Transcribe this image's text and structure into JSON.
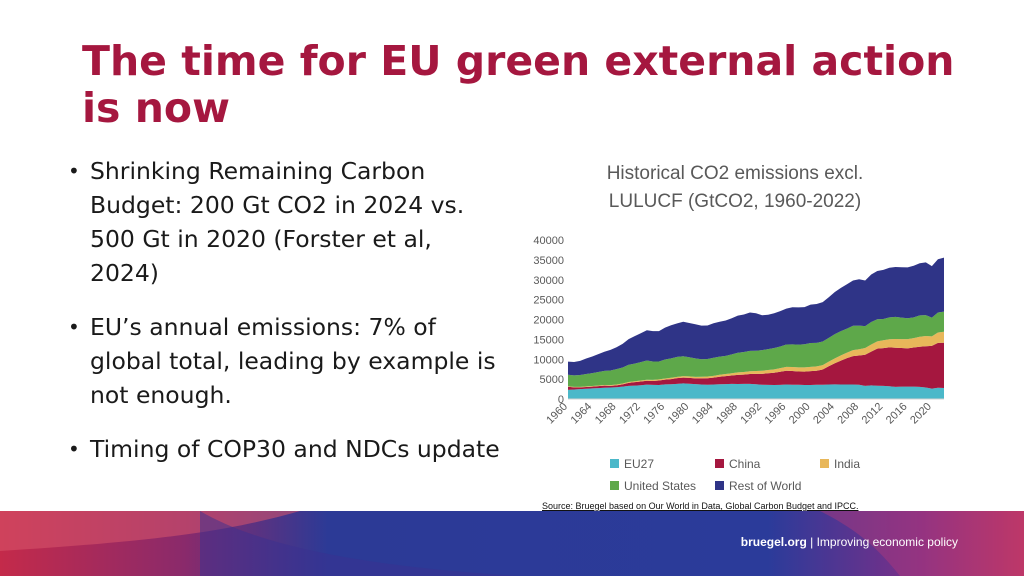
{
  "slide": {
    "title": "The time for EU green external action is now",
    "bullets": [
      "Shrinking Remaining Carbon Budget: 200 Gt CO2 in 2024 vs. 500 Gt in 2020 (Forster et al, 2024)",
      "EU’s annual emissions: 7% of global total, leading by example is not enough.",
      "Timing of COP30 and NDCs update"
    ],
    "source": "Source: Bruegel based on Our World in Data, Global Carbon Budget and IPCC.",
    "footer_site": "bruegel.org",
    "footer_separator": " | ",
    "footer_tagline": "Improving economic policy"
  },
  "colors": {
    "title": "#a5173f",
    "EU27": "#4bb8c9",
    "China": "#a5173f",
    "India": "#e8b75a",
    "United States": "#5ea84a",
    "Rest of World": "#2f3487"
  },
  "chart_data": {
    "type": "area",
    "stacked": true,
    "title_lines": [
      "Historical CO2 emissions excl.",
      "LULUCF (GtCO2, 1960-2022)"
    ],
    "x": [
      1960,
      1961,
      1962,
      1963,
      1964,
      1965,
      1966,
      1967,
      1968,
      1969,
      1970,
      1971,
      1972,
      1973,
      1974,
      1975,
      1976,
      1977,
      1978,
      1979,
      1980,
      1981,
      1982,
      1983,
      1984,
      1985,
      1986,
      1987,
      1988,
      1989,
      1990,
      1991,
      1992,
      1993,
      1994,
      1995,
      1996,
      1997,
      1998,
      1999,
      2000,
      2001,
      2002,
      2003,
      2004,
      2005,
      2006,
      2007,
      2008,
      2009,
      2010,
      2011,
      2012,
      2013,
      2014,
      2015,
      2016,
      2017,
      2018,
      2019,
      2020,
      2021,
      2022
    ],
    "x_tick_labels": [
      "1960",
      "1964",
      "1968",
      "1972",
      "1976",
      "1980",
      "1984",
      "1988",
      "1992",
      "1996",
      "2000",
      "2004",
      "2008",
      "2012",
      "2016",
      "2020"
    ],
    "ylim": [
      0,
      40000
    ],
    "y_ticks": [
      0,
      5000,
      10000,
      15000,
      20000,
      25000,
      30000,
      35000,
      40000
    ],
    "legend_position": "bottom",
    "series": [
      {
        "name": "EU27",
        "values": [
          2300,
          2380,
          2470,
          2590,
          2680,
          2750,
          2830,
          2880,
          2970,
          3120,
          3290,
          3370,
          3470,
          3620,
          3560,
          3520,
          3690,
          3710,
          3800,
          3920,
          3850,
          3740,
          3640,
          3600,
          3640,
          3720,
          3750,
          3790,
          3780,
          3790,
          3820,
          3720,
          3600,
          3540,
          3520,
          3550,
          3660,
          3590,
          3580,
          3520,
          3530,
          3590,
          3580,
          3660,
          3670,
          3640,
          3660,
          3640,
          3570,
          3300,
          3430,
          3330,
          3290,
          3210,
          3060,
          3110,
          3100,
          3120,
          3050,
          2880,
          2610,
          2820,
          2760
        ]
      },
      {
        "name": "China",
        "values": [
          780,
          550,
          440,
          440,
          440,
          480,
          520,
          430,
          470,
          570,
          770,
          870,
          930,
          960,
          980,
          1140,
          1180,
          1300,
          1450,
          1470,
          1470,
          1440,
          1540,
          1610,
          1730,
          1880,
          1990,
          2130,
          2300,
          2350,
          2480,
          2600,
          2730,
          2930,
          3080,
          3320,
          3460,
          3470,
          3330,
          3360,
          3470,
          3510,
          3830,
          4580,
          5320,
          6020,
          6620,
          7160,
          7380,
          7830,
          8480,
          9330,
          9510,
          9790,
          9820,
          9720,
          9650,
          9820,
          10100,
          10380,
          10740,
          11300,
          11400
        ]
      },
      {
        "name": "India",
        "values": [
          120,
          130,
          140,
          150,
          160,
          170,
          180,
          190,
          200,
          210,
          220,
          230,
          240,
          250,
          260,
          280,
          300,
          320,
          330,
          350,
          370,
          400,
          420,
          440,
          460,
          500,
          540,
          570,
          610,
          650,
          690,
          740,
          790,
          820,
          850,
          910,
          970,
          1000,
          1050,
          1080,
          1090,
          1110,
          1120,
          1160,
          1230,
          1300,
          1380,
          1490,
          1580,
          1710,
          1790,
          1850,
          1990,
          2040,
          2220,
          2230,
          2320,
          2380,
          2510,
          2580,
          2410,
          2620,
          2760
        ]
      },
      {
        "name": "United States",
        "values": [
          2890,
          2880,
          2990,
          3120,
          3240,
          3380,
          3550,
          3680,
          3870,
          4040,
          4330,
          4430,
          4650,
          4840,
          4650,
          4490,
          4760,
          4900,
          5020,
          5030,
          4800,
          4650,
          4390,
          4400,
          4560,
          4560,
          4560,
          4740,
          4940,
          5020,
          5120,
          5070,
          5170,
          5270,
          5370,
          5420,
          5610,
          5690,
          5730,
          5800,
          6000,
          5900,
          5940,
          5990,
          6110,
          6130,
          6050,
          6130,
          5920,
          5480,
          5680,
          5560,
          5350,
          5500,
          5560,
          5410,
          5260,
          5210,
          5380,
          5260,
          4710,
          5010,
          5060
        ]
      },
      {
        "name": "Rest of World",
        "values": [
          3310,
          3360,
          3560,
          3900,
          4170,
          4500,
          4800,
          5170,
          5510,
          5940,
          6460,
          6920,
          7240,
          7640,
          7620,
          7660,
          8040,
          8320,
          8430,
          8670,
          8640,
          8570,
          8480,
          8450,
          8660,
          8770,
          8910,
          9100,
          9340,
          9460,
          9660,
          9450,
          8770,
          8630,
          8740,
          8900,
          9030,
          9320,
          9360,
          9340,
          9640,
          9800,
          9910,
          10220,
          10600,
          10860,
          11160,
          11390,
          11690,
          11490,
          11950,
          12120,
          12350,
          12480,
          12540,
          12670,
          12770,
          12980,
          13120,
          13260,
          12950,
          13420,
          13580
        ]
      }
    ]
  }
}
